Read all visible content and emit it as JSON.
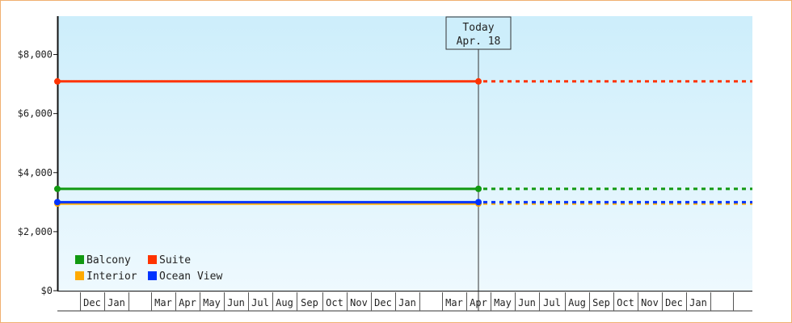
{
  "chart_data": {
    "type": "line",
    "title": "",
    "xlabel": "",
    "ylabel": "",
    "ylim": [
      0,
      9300
    ],
    "yticks": [
      0,
      2000,
      4000,
      6000,
      8000
    ],
    "ytick_labels": [
      "$0",
      "$2,000",
      "$4,000",
      "$6,000",
      "$8,000"
    ],
    "month_labels": [
      "",
      "Dec",
      "Jan",
      "",
      "Mar",
      "Apr",
      "May",
      "Jun",
      "Jul",
      "Aug",
      "Sep",
      "Oct",
      "Nov",
      "Dec",
      "Jan",
      "",
      "Mar",
      "Apr",
      "May",
      "Jun",
      "Jul",
      "Aug",
      "Sep",
      "Oct",
      "Nov",
      "Dec",
      "Jan",
      "",
      ""
    ],
    "today_index": 17,
    "today": {
      "line1": "Today",
      "line2": "Apr. 18"
    },
    "grid": false,
    "legend_position": "bottom-left",
    "series": [
      {
        "name": "Balcony",
        "color": "#119911",
        "values": [
          3450,
          3450
        ],
        "projected": 3450
      },
      {
        "name": "Suite",
        "color": "#ff3300",
        "values": [
          7090,
          7090
        ],
        "projected": 7090
      },
      {
        "name": "Interior",
        "color": "#ffaa00",
        "values": [
          2950,
          2950
        ],
        "projected": 2950
      },
      {
        "name": "Ocean View",
        "color": "#0033ff",
        "values": [
          3000,
          3000
        ],
        "projected": 3000
      }
    ],
    "legend_order": [
      "Balcony",
      "Suite",
      "Interior",
      "Ocean View"
    ]
  }
}
